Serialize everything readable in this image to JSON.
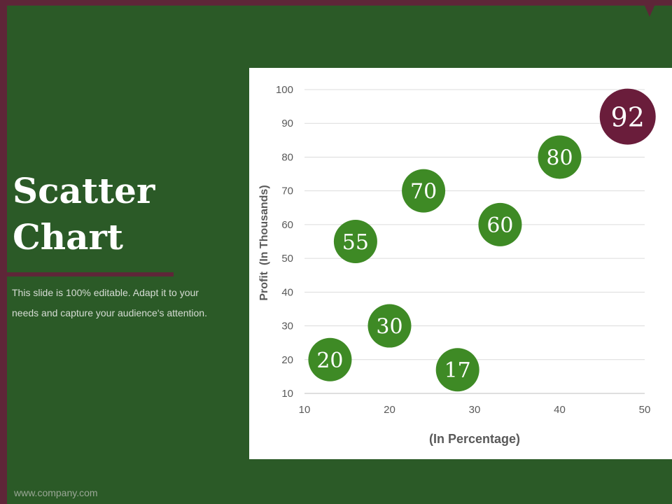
{
  "slide": {
    "title_line1": "Scatter",
    "title_line2": "Chart",
    "description": "This slide is 100% editable. Adapt it to your needs and capture your audience's attention.",
    "footer": "www.company.com"
  },
  "colors": {
    "background": "#2b5a27",
    "accent": "#5e2638",
    "bubble_green": "#3e8a25",
    "bubble_highlight": "#6a1d3b"
  },
  "chart_data": {
    "type": "scatter",
    "title": "",
    "xlabel": "(In Percentage)",
    "ylabel": "Profit  (In Thousands)",
    "xlim": [
      10,
      50
    ],
    "ylim": [
      10,
      100
    ],
    "xticks": [
      10,
      20,
      30,
      40,
      50
    ],
    "yticks": [
      10,
      20,
      30,
      40,
      50,
      60,
      70,
      80,
      90,
      100
    ],
    "grid": "horizontal",
    "points": [
      {
        "x": 13,
        "y": 20,
        "label": "20",
        "highlight": false
      },
      {
        "x": 16,
        "y": 55,
        "label": "55",
        "highlight": false
      },
      {
        "x": 20,
        "y": 30,
        "label": "30",
        "highlight": false
      },
      {
        "x": 24,
        "y": 70,
        "label": "70",
        "highlight": false
      },
      {
        "x": 28,
        "y": 17,
        "label": "17",
        "highlight": false
      },
      {
        "x": 33,
        "y": 60,
        "label": "60",
        "highlight": false
      },
      {
        "x": 40,
        "y": 80,
        "label": "80",
        "highlight": false
      },
      {
        "x": 48,
        "y": 92,
        "label": "92",
        "highlight": true
      }
    ]
  }
}
